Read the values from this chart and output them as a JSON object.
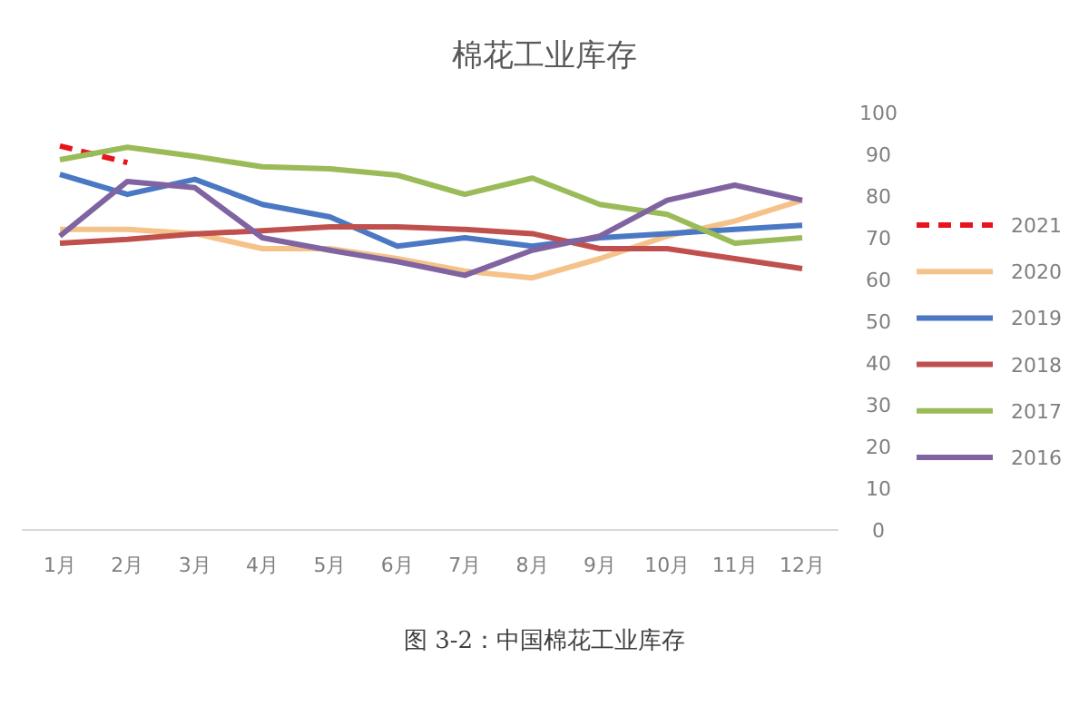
{
  "chart_data": {
    "type": "line",
    "title": "棉花工业库存",
    "categories": [
      "1月",
      "2月",
      "3月",
      "4月",
      "5月",
      "6月",
      "7月",
      "8月",
      "9月",
      "10月",
      "11月",
      "12月"
    ],
    "ylim": [
      0,
      100
    ],
    "yticks": [
      0,
      10,
      20,
      30,
      40,
      50,
      60,
      70,
      80,
      90,
      100
    ],
    "legend": "right",
    "annotations": [
      "图 3-2：中国棉花工业库存"
    ],
    "series": [
      {
        "name": "2021",
        "color": "#e8141c",
        "line_style": "dashed",
        "values": [
          92,
          88,
          null,
          null,
          null,
          null,
          null,
          null,
          null,
          null,
          null,
          null
        ]
      },
      {
        "name": "2020",
        "color": "#f5c28a",
        "values": [
          72,
          72,
          71,
          67.4,
          67.4,
          65,
          62,
          60.4,
          65,
          70.4,
          74,
          79
        ]
      },
      {
        "name": "2019",
        "color": "#4a78c2",
        "values": [
          85.2,
          80.4,
          84,
          78,
          75,
          68,
          70,
          68,
          70,
          71,
          72,
          73
        ]
      },
      {
        "name": "2018",
        "color": "#c0504d",
        "values": [
          68.7,
          69.6,
          70.9,
          71.7,
          72.6,
          72.6,
          72,
          71,
          67.4,
          67.4,
          65,
          62.6
        ]
      },
      {
        "name": "2017",
        "color": "#9bbb59",
        "values": [
          88.7,
          91.7,
          89.5,
          87,
          86.5,
          85,
          80.4,
          84.3,
          78,
          75.6,
          68.7,
          70
        ]
      },
      {
        "name": "2016",
        "color": "#8064a2",
        "values": [
          70.4,
          83.5,
          82,
          70,
          67,
          64.3,
          61,
          67,
          70.4,
          79,
          82.6,
          79
        ]
      }
    ]
  }
}
